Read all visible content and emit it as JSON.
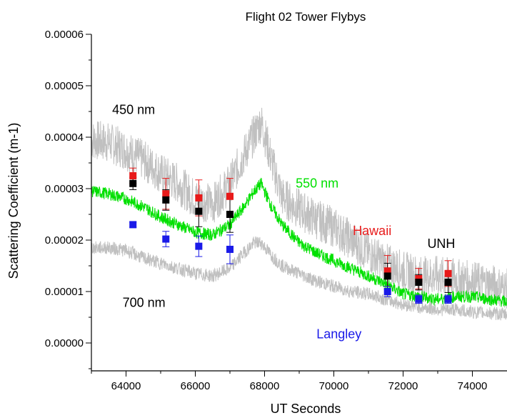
{
  "chart_data": {
    "type": "scatter",
    "title": "Flight 02 Tower Flybys",
    "xlabel": "UT Seconds",
    "ylabel": "Scattering Coefficient (m-1)",
    "xlim": [
      63000,
      75000
    ],
    "ylim": [
      -5e-06,
      6e-05
    ],
    "x_ticks": [
      "64000",
      "66000",
      "68000",
      "70000",
      "72000",
      "74000"
    ],
    "y_ticks": [
      "0.00000",
      "0.00001",
      "0.00002",
      "0.00003",
      "0.00004",
      "0.00005",
      "0.00006"
    ],
    "grid": false,
    "lines": [
      {
        "name": "450 nm",
        "color": "#c0c0c0",
        "x": [
          63000,
          63500,
          64000,
          64500,
          65000,
          65500,
          66000,
          66500,
          67000,
          67400,
          67700,
          67900,
          68200,
          68500,
          69000,
          69500,
          70000,
          70500,
          71000,
          71500,
          72000,
          72500,
          73000,
          73500,
          74000,
          74500,
          75000
        ],
        "y": [
          3.95e-05,
          3.9e-05,
          3.75e-05,
          3.55e-05,
          3.3e-05,
          3.1e-05,
          2.8e-05,
          2.7e-05,
          3.1e-05,
          3.65e-05,
          4.05e-05,
          4.3e-05,
          3.55e-05,
          2.85e-05,
          2.6e-05,
          2.4e-05,
          2.25e-05,
          2e-05,
          1.75e-05,
          1.55e-05,
          1.4e-05,
          1.3e-05,
          1.3e-05,
          1.25e-05,
          1.2e-05,
          1.15e-05,
          1.05e-05
        ]
      },
      {
        "name": "550 nm",
        "color": "#00e000",
        "x": [
          63000,
          63500,
          64000,
          64500,
          65000,
          65500,
          66000,
          66500,
          67000,
          67400,
          67700,
          67900,
          68200,
          68500,
          69000,
          69500,
          70000,
          70500,
          71000,
          71500,
          72000,
          72500,
          73000,
          73500,
          74000,
          74500,
          75000
        ],
        "y": [
          2.95e-05,
          2.9e-05,
          2.8e-05,
          2.65e-05,
          2.45e-05,
          2.3e-05,
          2.15e-05,
          2.1e-05,
          2.3e-05,
          2.65e-05,
          2.95e-05,
          3.1e-05,
          2.65e-05,
          2.3e-05,
          1.95e-05,
          1.75e-05,
          1.6e-05,
          1.45e-05,
          1.3e-05,
          1.15e-05,
          9.5e-06,
          9e-06,
          8.5e-06,
          9e-06,
          9e-06,
          8.5e-06,
          8e-06
        ]
      },
      {
        "name": "700 nm",
        "color": "#c0c0c0",
        "x": [
          63000,
          63500,
          64000,
          64500,
          65000,
          65500,
          66000,
          66500,
          67000,
          67400,
          67700,
          67900,
          68200,
          68500,
          69000,
          69500,
          70000,
          70500,
          71000,
          71500,
          72000,
          72500,
          73000,
          73500,
          74000,
          74500,
          75000
        ],
        "y": [
          1.85e-05,
          1.85e-05,
          1.8e-05,
          1.65e-05,
          1.55e-05,
          1.45e-05,
          1.35e-05,
          1.3e-05,
          1.45e-05,
          1.75e-05,
          1.95e-05,
          1.95e-05,
          1.7e-05,
          1.5e-05,
          1.35e-05,
          1.2e-05,
          1.1e-05,
          1e-05,
          9.5e-06,
          8.5e-06,
          7.5e-06,
          7e-06,
          6.5e-06,
          6.5e-06,
          6e-06,
          5.8e-06,
          5.5e-06
        ]
      }
    ],
    "series": [
      {
        "name": "Hawaii",
        "color": "#e81a1a",
        "x": [
          64200,
          65150,
          66100,
          67000,
          71550,
          72450,
          73300
        ],
        "y": [
          3.25e-05,
          2.9e-05,
          2.82e-05,
          2.85e-05,
          1.4e-05,
          1.25e-05,
          1.35e-05
        ],
        "err": [
          1.5e-06,
          3e-06,
          3.5e-06,
          3.5e-06,
          3e-06,
          2e-06,
          2.5e-06
        ]
      },
      {
        "name": "UNH",
        "color": "#000000",
        "x": [
          64200,
          65150,
          66100,
          67000,
          71550,
          72450,
          73300
        ],
        "y": [
          3.1e-05,
          2.78e-05,
          2.56e-05,
          2.5e-05,
          1.3e-05,
          1.18e-05,
          1.18e-05
        ],
        "err": [
          1.2e-06,
          2e-06,
          3e-06,
          3.5e-06,
          2.5e-06,
          1.5e-06,
          2e-06
        ]
      },
      {
        "name": "Langley",
        "color": "#1a1ae8",
        "x": [
          64200,
          65150,
          66100,
          67000,
          71550,
          72450,
          73300
        ],
        "y": [
          2.3e-05,
          2.02e-05,
          1.88e-05,
          1.82e-05,
          1e-05,
          8.5e-06,
          8.5e-06
        ],
        "err": [
          5e-07,
          1.5e-06,
          2e-06,
          2.8e-06,
          1e-06,
          8e-07,
          8e-07
        ]
      }
    ],
    "annotations": [
      {
        "text": "450 nm",
        "color": "#000000",
        "x": 63600,
        "y": 4.45e-05
      },
      {
        "text": "550 nm",
        "color": "#00e000",
        "x": 68900,
        "y": 3.02e-05
      },
      {
        "text": "Hawaii",
        "color": "#e81a1a",
        "x": 70550,
        "y": 2.1e-05
      },
      {
        "text": "UNH",
        "color": "#000000",
        "x": 72700,
        "y": 1.85e-05
      },
      {
        "text": "700 nm",
        "color": "#000000",
        "x": 63900,
        "y": 7e-06
      },
      {
        "text": "Langley",
        "color": "#1a1ae8",
        "x": 69500,
        "y": 9e-07
      }
    ]
  }
}
